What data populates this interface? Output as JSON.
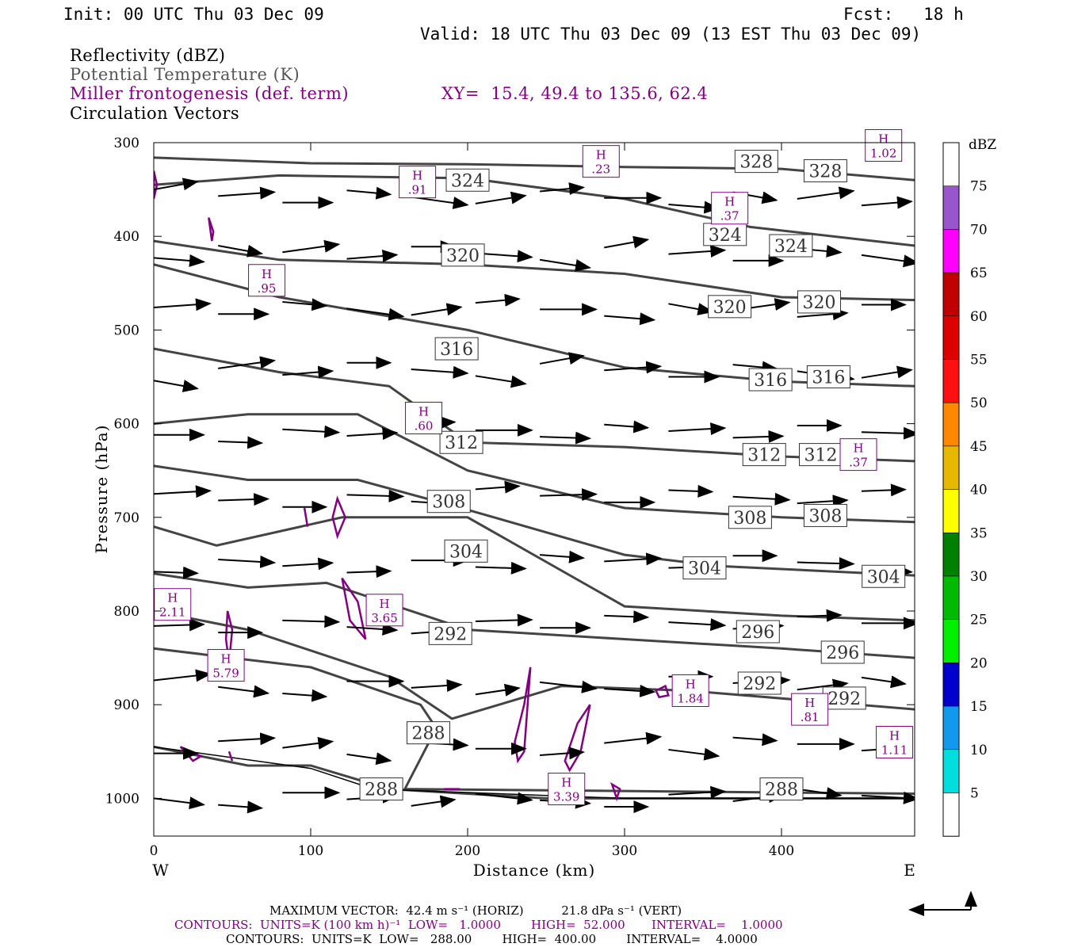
{
  "header": {
    "init": "Init: 00 UTC Thu 03 Dec 09",
    "fcst": "Fcst:   18 h",
    "valid": "Valid: 18 UTC Thu 03 Dec 09 (13 EST Thu 03 Dec 09)"
  },
  "legend": {
    "reflectivity": "Reflectivity (dBZ)",
    "theta": "Potential Temperature (K)",
    "miller": "Miller frontogenesis (def. term)",
    "xy": "XY=  15.4, 49.4 to 135.6, 62.4",
    "vectors": "Circulation Vectors"
  },
  "colorbar": {
    "title": "dBZ",
    "labels": [
      "75",
      "70",
      "65",
      "60",
      "55",
      "50",
      "45",
      "40",
      "35",
      "30",
      "25",
      "20",
      "15",
      "10",
      "5"
    ],
    "colors": [
      "#ffffff",
      "#9955cc",
      "#ff00ff",
      "#c00000",
      "#dd0000",
      "#ff1010",
      "#ff8800",
      "#e6b800",
      "#ffff00",
      "#008000",
      "#00bb00",
      "#00ee00",
      "#0000cc",
      "#1199ee",
      "#00dddd",
      "#ffffff"
    ]
  },
  "chart_data": {
    "type": "line",
    "title": "",
    "xlabel": "Distance (km)",
    "ylabel": "Pressure (hPa)",
    "xlim": [
      0,
      485
    ],
    "ylim": [
      1040,
      300
    ],
    "x_ticks": [
      "0",
      "100",
      "200",
      "300",
      "400"
    ],
    "y_ticks": [
      "300",
      "400",
      "500",
      "600",
      "700",
      "800",
      "900",
      "1000"
    ],
    "x_end_labels": {
      "left": "W",
      "right": "E"
    },
    "theta_contour_labels": [
      {
        "value": "328",
        "x": 384,
        "p": 320
      },
      {
        "value": "328",
        "x": 428,
        "p": 330
      },
      {
        "value": "324",
        "x": 200,
        "p": 340
      },
      {
        "value": "324",
        "x": 364,
        "p": 398
      },
      {
        "value": "324",
        "x": 406,
        "p": 410
      },
      {
        "value": "320",
        "x": 197,
        "p": 420
      },
      {
        "value": "320",
        "x": 367,
        "p": 475
      },
      {
        "value": "320",
        "x": 424,
        "p": 470
      },
      {
        "value": "316",
        "x": 193,
        "p": 520
      },
      {
        "value": "316",
        "x": 393,
        "p": 553
      },
      {
        "value": "316",
        "x": 430,
        "p": 550
      },
      {
        "value": "312",
        "x": 196,
        "p": 620
      },
      {
        "value": "312",
        "x": 389,
        "p": 633
      },
      {
        "value": "312",
        "x": 425,
        "p": 633
      },
      {
        "value": "308",
        "x": 188,
        "p": 683
      },
      {
        "value": "308",
        "x": 380,
        "p": 700
      },
      {
        "value": "308",
        "x": 428,
        "p": 698
      },
      {
        "value": "304",
        "x": 199,
        "p": 736
      },
      {
        "value": "304",
        "x": 351,
        "p": 754
      },
      {
        "value": "304",
        "x": 465,
        "p": 763
      },
      {
        "value": "296",
        "x": 385,
        "p": 822
      },
      {
        "value": "296",
        "x": 439,
        "p": 844
      },
      {
        "value": "292",
        "x": 189,
        "p": 824
      },
      {
        "value": "292",
        "x": 386,
        "p": 877
      },
      {
        "value": "292",
        "x": 440,
        "p": 893
      },
      {
        "value": "288",
        "x": 175,
        "p": 930
      },
      {
        "value": "288",
        "x": 145,
        "p": 990
      },
      {
        "value": "288",
        "x": 400,
        "p": 990
      }
    ],
    "frontogenesis_highs": [
      {
        "value": ".91",
        "x": 168,
        "p": 342
      },
      {
        "value": ".23",
        "x": 285,
        "p": 320
      },
      {
        "value": "1.02",
        "x": 465,
        "p": 303
      },
      {
        "value": ".37",
        "x": 367,
        "p": 370
      },
      {
        "value": ".95",
        "x": 72,
        "p": 447
      },
      {
        "value": ".60",
        "x": 172,
        "p": 594
      },
      {
        "value": ".37",
        "x": 449,
        "p": 633
      },
      {
        "value": "2.11",
        "x": 12,
        "p": 793
      },
      {
        "value": "3.65",
        "x": 147,
        "p": 799
      },
      {
        "value": "5.79",
        "x": 46,
        "p": 858
      },
      {
        "value": "1.84",
        "x": 342,
        "p": 885
      },
      {
        "value": ".81",
        "x": 418,
        "p": 905
      },
      {
        "value": "1.11",
        "x": 472,
        "p": 940
      },
      {
        "value": "3.39",
        "x": 263,
        "p": 990
      }
    ]
  },
  "footer": {
    "max_vector": "MAXIMUM VECTOR:  42.4 m s⁻¹ (HORIZ)          21.8 dPa s⁻¹ (VERT)",
    "contours1": "CONTOURS:  UNITS=K (100 km h)⁻¹  LOW=   1.0000        HIGH=  52.000       INTERVAL=    1.0000",
    "contours2": "CONTOURS:  UNITS=K  LOW=   288.00        HIGH=  400.00        INTERVAL=    4.0000"
  }
}
